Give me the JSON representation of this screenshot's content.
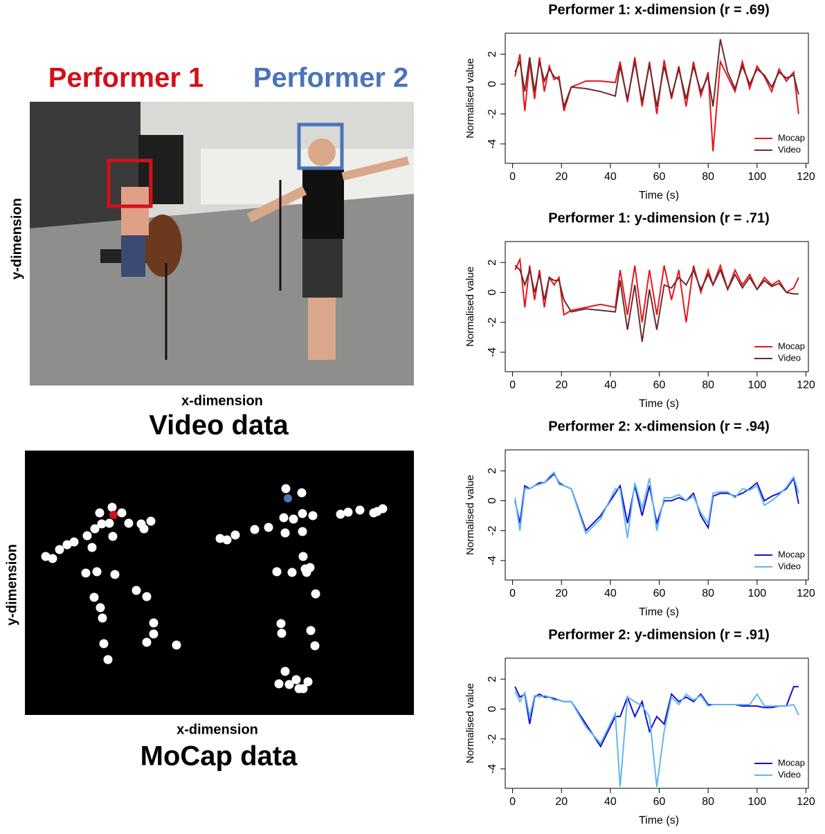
{
  "video_panel": {
    "performer_1": "Performer 1",
    "performer_2": "Performer 2",
    "y_axis_label": "y-dimension",
    "x_axis_label": "x-dimension",
    "caption": "Video data"
  },
  "mocap_panel": {
    "y_axis_label": "y-dimension",
    "x_axis_label": "x-dimension",
    "caption": "MoCap data"
  },
  "chart_data": [
    {
      "type": "line",
      "title": "Performer 1: x-dimension (r = .69)",
      "xlabel": "Time (s)",
      "ylabel": "Normalised value",
      "x": [
        1,
        3,
        5,
        7,
        9,
        11,
        13,
        15,
        17,
        19,
        21,
        24,
        30,
        36,
        42,
        44,
        47,
        50,
        53,
        56,
        59,
        62,
        65,
        68,
        71,
        74,
        77,
        80,
        82,
        85,
        88,
        91,
        94,
        97,
        100,
        103,
        106,
        109,
        112,
        115,
        117
      ],
      "series": [
        {
          "name": "Mocap",
          "color": "#e8141c",
          "values": [
            0.5,
            2.0,
            -1.8,
            1.5,
            -1.0,
            1.8,
            -0.5,
            1.2,
            0.3,
            0.5,
            -1.8,
            -0.2,
            0.2,
            0.2,
            0.1,
            1.5,
            -1.2,
            1.8,
            -1.5,
            1.5,
            -2.0,
            1.6,
            -1.0,
            1.2,
            -1.5,
            1.5,
            -0.8,
            0.8,
            -4.5,
            1.5,
            0.5,
            -0.5,
            1.5,
            -0.3,
            1.2,
            0.5,
            -0.5,
            1.0,
            0.2,
            0.8,
            -2.0
          ]
        },
        {
          "name": "Video",
          "color": "#6b2c2c",
          "values": [
            0.8,
            1.5,
            -0.5,
            1.8,
            -0.5,
            1.5,
            0.2,
            1.0,
            0.5,
            0.3,
            -1.5,
            -0.2,
            -0.3,
            -0.5,
            -0.8,
            1.2,
            -1.0,
            1.5,
            -1.2,
            1.3,
            -1.5,
            1.2,
            -0.8,
            1.0,
            -1.0,
            1.2,
            -0.5,
            0.5,
            -1.5,
            3.0,
            0.8,
            -0.3,
            1.2,
            0.0,
            1.0,
            0.6,
            -0.2,
            0.8,
            0.4,
            0.6,
            -0.7
          ]
        }
      ],
      "xlim": [
        -3,
        121
      ],
      "ylim": [
        -5.3,
        3.4
      ],
      "xticks": [
        0,
        20,
        40,
        60,
        80,
        100,
        120
      ],
      "yticks": [
        -4,
        -2,
        0,
        2
      ],
      "legend": "bottom-right"
    },
    {
      "type": "line",
      "title": "Performer 1: y-dimension (r = .71)",
      "xlabel": "Time (s)",
      "ylabel": "Normalised value",
      "x": [
        1,
        3,
        5,
        7,
        9,
        11,
        13,
        15,
        17,
        19,
        21,
        24,
        30,
        36,
        42,
        44,
        47,
        50,
        53,
        56,
        59,
        62,
        65,
        68,
        71,
        74,
        77,
        80,
        82,
        85,
        88,
        91,
        94,
        97,
        100,
        103,
        106,
        109,
        112,
        115,
        117
      ],
      "series": [
        {
          "name": "Mocap",
          "color": "#e8141c",
          "values": [
            1.5,
            2.2,
            -1.0,
            1.8,
            -0.5,
            1.5,
            -1.0,
            1.0,
            0.5,
            1.0,
            -1.5,
            -1.2,
            -1.0,
            -0.8,
            -1.0,
            1.5,
            -1.5,
            1.8,
            -2.0,
            1.5,
            -1.5,
            1.8,
            -0.5,
            1.5,
            -2.0,
            1.8,
            0.0,
            1.5,
            0.5,
            1.8,
            0.2,
            1.5,
            0.5,
            1.2,
            0.2,
            1.0,
            0.5,
            0.8,
            0.0,
            0.3,
            1.0
          ]
        },
        {
          "name": "Video",
          "color": "#6b2c2c",
          "values": [
            1.8,
            1.5,
            0.5,
            1.5,
            0.0,
            1.2,
            -0.5,
            1.0,
            0.8,
            0.8,
            -0.5,
            -1.3,
            -1.1,
            -1.2,
            -1.3,
            0.8,
            -2.5,
            0.5,
            -3.3,
            0.2,
            -2.5,
            0.5,
            0.3,
            1.0,
            0.5,
            1.5,
            0.2,
            1.2,
            0.5,
            1.5,
            0.2,
            1.2,
            0.3,
            1.0,
            0.2,
            0.8,
            0.4,
            0.6,
            0.0,
            -0.1,
            -0.1
          ]
        }
      ],
      "xlim": [
        -3,
        121
      ],
      "ylim": [
        -5.3,
        3.4
      ],
      "xticks": [
        0,
        20,
        40,
        60,
        80,
        100,
        120
      ],
      "yticks": [
        -4,
        -2,
        0,
        2
      ],
      "legend": "bottom-right"
    },
    {
      "type": "line",
      "title": "Performer 2: x-dimension (r = .94)",
      "xlabel": "Time (s)",
      "ylabel": "Normalised value",
      "x": [
        1,
        3,
        5,
        7,
        9,
        11,
        13,
        15,
        17,
        19,
        21,
        24,
        30,
        36,
        42,
        44,
        47,
        50,
        53,
        56,
        59,
        62,
        65,
        68,
        71,
        74,
        77,
        80,
        82,
        85,
        88,
        91,
        94,
        97,
        100,
        103,
        106,
        109,
        112,
        115,
        117
      ],
      "series": [
        {
          "name": "Mocap",
          "color": "#1010d0",
          "values": [
            0.0,
            -1.5,
            1.0,
            0.8,
            1.0,
            1.2,
            1.2,
            1.5,
            1.8,
            1.2,
            1.0,
            0.8,
            -2.0,
            -1.0,
            0.5,
            1.0,
            -1.5,
            1.0,
            -1.0,
            1.0,
            -1.5,
            0.0,
            0.0,
            0.2,
            0.0,
            0.5,
            -1.0,
            -1.8,
            0.3,
            0.5,
            0.5,
            0.3,
            0.5,
            0.8,
            1.2,
            0.0,
            0.3,
            0.5,
            0.8,
            1.5,
            -0.2
          ]
        },
        {
          "name": "Video",
          "color": "#5fb6f0",
          "values": [
            0.2,
            -2.0,
            0.8,
            0.8,
            1.0,
            1.1,
            1.2,
            1.6,
            1.9,
            1.1,
            1.0,
            0.8,
            -2.2,
            -1.2,
            0.8,
            0.8,
            -2.5,
            1.2,
            -0.5,
            1.5,
            -2.0,
            0.2,
            0.2,
            0.4,
            0.0,
            0.3,
            -0.8,
            -1.5,
            0.5,
            0.6,
            0.6,
            0.2,
            0.8,
            0.7,
            1.0,
            -0.3,
            0.0,
            0.4,
            0.9,
            1.6,
            0.5
          ]
        }
      ],
      "xlim": [
        -3,
        121
      ],
      "ylim": [
        -5.3,
        3.4
      ],
      "xticks": [
        0,
        20,
        40,
        60,
        80,
        100,
        120
      ],
      "yticks": [
        -4,
        -2,
        0,
        2
      ],
      "legend": "bottom-right"
    },
    {
      "type": "line",
      "title": "Performer 2: y-dimension (r = .91)",
      "xlabel": "Time (s)",
      "ylabel": "Normalised value",
      "x": [
        1,
        3,
        5,
        7,
        9,
        11,
        13,
        15,
        17,
        19,
        21,
        24,
        30,
        36,
        42,
        44,
        47,
        50,
        53,
        56,
        59,
        62,
        65,
        68,
        71,
        74,
        77,
        80,
        82,
        85,
        88,
        91,
        94,
        97,
        100,
        103,
        106,
        109,
        112,
        115,
        117
      ],
      "series": [
        {
          "name": "Mocap",
          "color": "#1010d0",
          "values": [
            1.5,
            0.8,
            1.0,
            -1.0,
            0.8,
            1.0,
            0.8,
            0.8,
            0.7,
            0.6,
            0.5,
            0.5,
            -1.0,
            -2.5,
            -0.5,
            -0.5,
            0.8,
            -0.5,
            0.5,
            -1.5,
            -0.5,
            -1.0,
            1.0,
            0.5,
            0.8,
            0.5,
            1.0,
            0.3,
            0.3,
            0.3,
            0.3,
            0.3,
            0.2,
            0.2,
            0.2,
            0.1,
            0.1,
            0.2,
            0.2,
            1.5,
            1.5
          ]
        },
        {
          "name": "Video",
          "color": "#5fb6f0",
          "values": [
            1.2,
            0.5,
            1.1,
            -0.5,
            0.9,
            0.8,
            0.9,
            0.8,
            0.6,
            0.6,
            0.5,
            0.5,
            -1.2,
            -2.3,
            -0.3,
            -5.2,
            0.8,
            0.5,
            0.2,
            -0.5,
            -5.2,
            -1.5,
            0.8,
            0.3,
            1.0,
            0.6,
            0.9,
            0.2,
            0.3,
            0.3,
            0.3,
            0.3,
            0.3,
            0.3,
            1.0,
            0.2,
            0.2,
            0.2,
            0.2,
            0.3,
            -0.4
          ]
        }
      ],
      "xlim": [
        -3,
        121
      ],
      "ylim": [
        -5.3,
        3.4
      ],
      "xticks": [
        0,
        20,
        40,
        60,
        80,
        100,
        120
      ],
      "yticks": [
        -4,
        -2,
        0,
        2
      ],
      "legend": "bottom-right"
    }
  ]
}
